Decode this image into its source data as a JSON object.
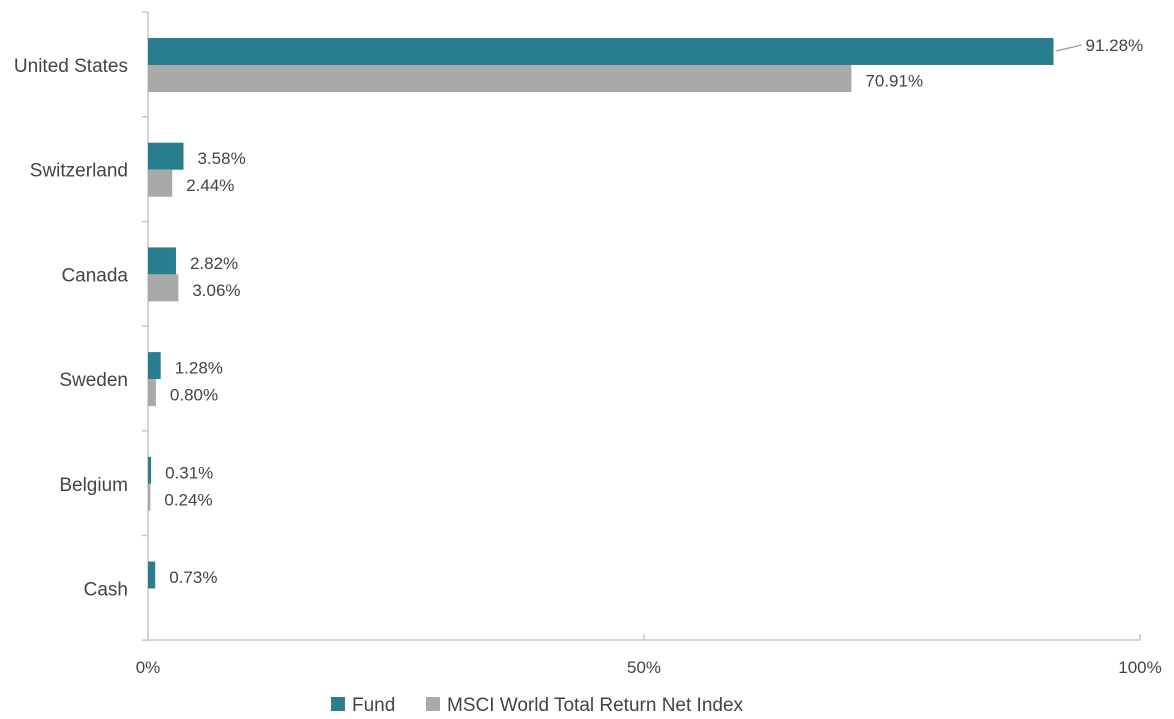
{
  "chart_data": {
    "type": "bar",
    "orientation": "horizontal",
    "categories": [
      "United States",
      "Switzerland",
      "Canada",
      "Sweden",
      "Belgium",
      "Cash"
    ],
    "series": [
      {
        "name": "Fund",
        "color": "#2a7f8e",
        "values": [
          91.28,
          3.58,
          2.82,
          1.28,
          0.31,
          0.73
        ],
        "labels": [
          "91.28%",
          "3.58%",
          "2.82%",
          "1.28%",
          "0.31%",
          "0.73%"
        ]
      },
      {
        "name": "MSCI World Total Return Net Index",
        "color": "#a9a9a9",
        "values": [
          70.91,
          2.44,
          3.06,
          0.8,
          0.24,
          null
        ],
        "labels": [
          "70.91%",
          "2.44%",
          "3.06%",
          "0.80%",
          "0.24%",
          null
        ]
      }
    ],
    "xlim": [
      0,
      100
    ],
    "xticks": [
      0,
      50,
      100
    ],
    "xtick_labels": [
      "0%",
      "50%",
      "100%"
    ],
    "grid": false,
    "legend_position": "bottom"
  }
}
